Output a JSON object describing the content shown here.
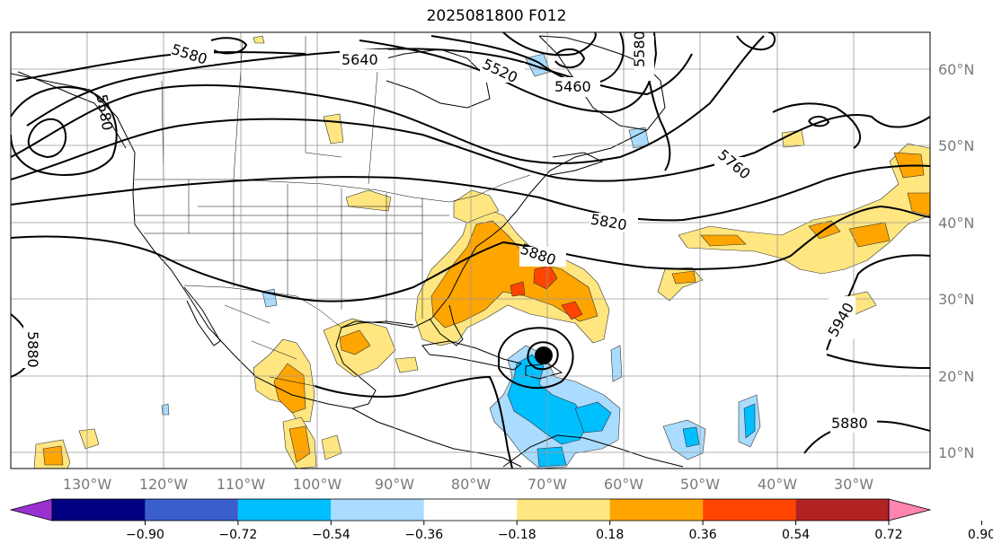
{
  "title": "2025081800 F012",
  "map": {
    "lon_labels": [
      "130°W",
      "120°W",
      "110°W",
      "100°W",
      "90°W",
      "80°W",
      "70°W",
      "60°W",
      "50°W",
      "40°W",
      "30°W"
    ],
    "lat_labels": [
      "60°N",
      "50°N",
      "40°N",
      "30°N",
      "20°N",
      "10°N"
    ],
    "contour_labels": [
      "5580",
      "5640",
      "5520",
      "5460",
      "5580",
      "5580",
      "5760",
      "5820",
      "5880",
      "5880",
      "5940",
      "5880"
    ]
  },
  "colorbar": {
    "ticks": [
      "−0.90",
      "−0.72",
      "−0.54",
      "−0.36",
      "−0.18",
      "0.18",
      "0.36",
      "0.54",
      "0.72",
      "0.90"
    ],
    "colors": [
      "#9b30d0",
      "#000080",
      "#3a5fcd",
      "#00bfff",
      "#aadcff",
      "#ffffff",
      "#ffe680",
      "#ffa500",
      "#ff4500",
      "#b22222",
      "#ff85b0"
    ]
  },
  "colors": {
    "light_pos": "#ffe680",
    "mid_pos": "#ffa500",
    "high_pos": "#ff4500",
    "light_neg": "#aadcff",
    "mid_neg": "#00bfff",
    "grid": "#999999",
    "contour": "#000000"
  }
}
